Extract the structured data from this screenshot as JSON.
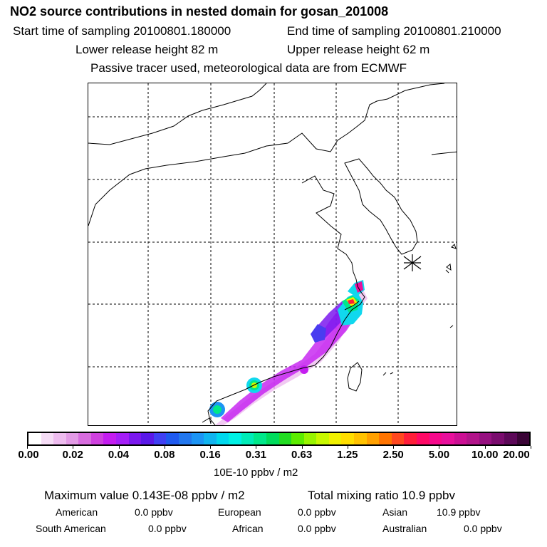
{
  "header": {
    "title": "NO2 source contributions in nested domain for gosan_201008",
    "start_time": "Start time of sampling 20100801.180000",
    "end_time": "End time of sampling 20100801.210000",
    "lower_height": "Lower release height   82 m",
    "upper_height": "Upper release height   62 m",
    "tracer_note": "Passive tracer used, meteorological data are from ECMWF"
  },
  "legend": {
    "ticks": [
      "0.00",
      "0.02",
      "0.04",
      "0.08",
      "0.16",
      "0.31",
      "0.63",
      "1.25",
      "2.50",
      "5.00",
      "10.00",
      "20.00"
    ],
    "unit": "10E-10 ppbv / m2",
    "colors": [
      "#ffffff",
      "#f6ddf6",
      "#eebcef",
      "#e39be6",
      "#d86ddf",
      "#cf41df",
      "#c41df0",
      "#a51ff8",
      "#7b19ee",
      "#5a19e8",
      "#4040f4",
      "#1f5af0",
      "#2277ee",
      "#1c94f4",
      "#10b4f0",
      "#00d8ee",
      "#00f0e4",
      "#00ecb8",
      "#00e88a",
      "#00dc5c",
      "#22dc22",
      "#5cec00",
      "#98f400",
      "#c8f800",
      "#f0f000",
      "#ffde00",
      "#ffc200",
      "#ffa000",
      "#ff7400",
      "#ff4820",
      "#ff1e3a",
      "#ff0a66",
      "#f60a8c",
      "#e8109c",
      "#cc1094",
      "#b2148a",
      "#961080",
      "#7a0c6e",
      "#5c0858",
      "#3a0436"
    ]
  },
  "summary": {
    "max_value": "Maximum value  0.143E-08 ppbv / m2",
    "total_mixing": "Total mixing ratio       10.9 ppbv",
    "contributions": [
      {
        "label": "American",
        "value": "0.0 ppbv"
      },
      {
        "label": "European",
        "value": "0.0 ppbv"
      },
      {
        "label": "Asian",
        "value": "10.9 ppbv"
      },
      {
        "label": "South American",
        "value": "0.0 ppbv"
      },
      {
        "label": "African",
        "value": "0.0 ppbv"
      },
      {
        "label": "Australian",
        "value": "0.0 ppbv"
      }
    ]
  },
  "map": {
    "marker_icon": "receptor-star-icon",
    "colors": {
      "coast": "#000000",
      "grid": "#000000",
      "purple": "#c41df0",
      "violet": "#a51ff8",
      "blue": "#4a3cf0",
      "cyan": "#10d8ee",
      "green": "#00e88a",
      "yellow": "#f0f000",
      "red": "#ff1e3a",
      "magenta": "#e8109c"
    }
  }
}
